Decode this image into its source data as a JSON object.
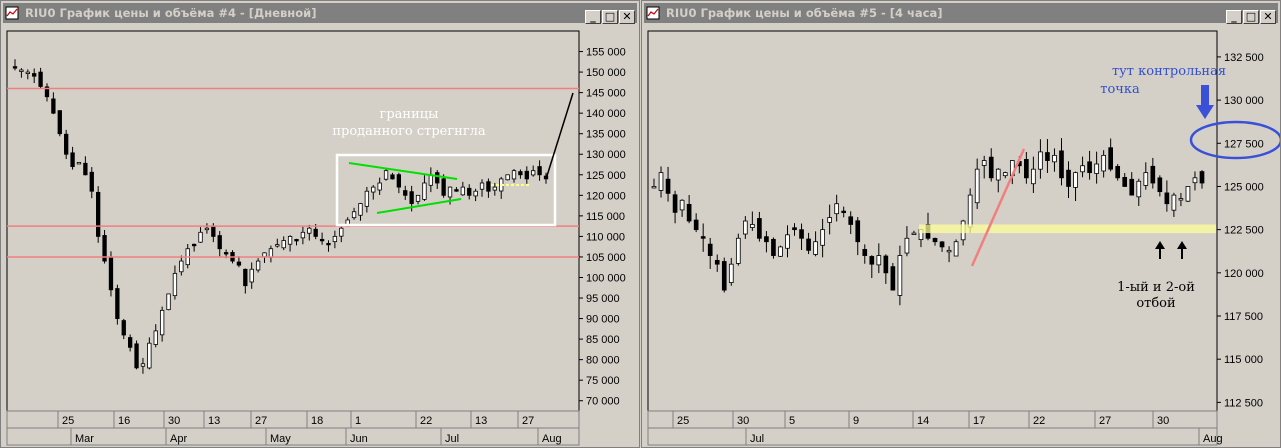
{
  "windows": [
    {
      "id": "w4",
      "title": "RIU0 График цены и объёма #4 - [Дневной]",
      "controls": [
        "_",
        "□",
        "✕"
      ],
      "chart_data": {
        "type": "candlestick",
        "instrument": "RIU0",
        "timeframe": "Дневной",
        "ylim": [
          67500,
          160000
        ],
        "yticks": [
          "155 000",
          "150 000",
          "145 000",
          "140 000",
          "135 000",
          "130 000",
          "125 000",
          "120 000",
          "115 000",
          "110 000",
          "105 000",
          "100 000",
          "95 000",
          "90 000",
          "85 000",
          "80 000",
          "75 000",
          "70 000"
        ],
        "ytick_values": [
          155000,
          150000,
          145000,
          140000,
          135000,
          130000,
          125000,
          120000,
          115000,
          110000,
          105000,
          100000,
          95000,
          90000,
          85000,
          80000,
          75000,
          70000
        ],
        "xticks_top": [
          "25",
          "16",
          "30",
          "13",
          "27",
          "18",
          "1",
          "22",
          "13",
          "27"
        ],
        "xticks_bottom": [
          "Mar",
          "Apr",
          "May",
          "Jun",
          "Jul",
          "Aug"
        ],
        "hlines": [
          146000,
          112500,
          105000
        ],
        "hline_color": "#f08080",
        "annotation": [
          "границы",
          "проданного стрегнгла"
        ],
        "close_series": [
          151000,
          150500,
          150000,
          149000,
          146500,
          144000,
          140000,
          135000,
          130000,
          127000,
          128000,
          125000,
          121000,
          110000,
          104000,
          97000,
          90000,
          86000,
          83000,
          78000,
          79000,
          84000,
          87000,
          92000,
          96000,
          101000,
          104000,
          107000,
          108000,
          111000,
          112000,
          110000,
          107000,
          106000,
          104000,
          103000,
          98000,
          102000,
          104000,
          106000,
          107000,
          108000,
          109000,
          110000,
          109000,
          111000,
          112000,
          110000,
          109000,
          108000,
          110000,
          112000,
          114000,
          116000,
          118000,
          121000,
          122000,
          123000,
          126000,
          124000,
          122000,
          120000,
          118000,
          120000,
          123000,
          125000,
          123000,
          120000,
          122000,
          121000,
          122000,
          120000,
          121000,
          123000,
          121000,
          122000,
          124000,
          125000,
          126000,
          125000,
          124000,
          126000,
          125000,
          124000
        ]
      }
    },
    {
      "id": "w5",
      "title": "RIU0 График цены и объёма #5 - [4 часа]",
      "controls": [
        "_",
        "□",
        "✕"
      ],
      "chart_data": {
        "type": "candlestick",
        "instrument": "RIU0",
        "timeframe": "4 часа",
        "ylim": [
          112000,
          134000
        ],
        "yticks": [
          "132 500",
          "130 000",
          "127 500",
          "125 000",
          "122 500",
          "120 000",
          "117 500",
          "115 000",
          "112 500"
        ],
        "ytick_values": [
          132500,
          130000,
          127500,
          125000,
          122500,
          120000,
          117500,
          115000,
          112500
        ],
        "xticks_top": [
          "25",
          "30",
          "5",
          "9",
          "14",
          "17",
          "22",
          "27",
          "30"
        ],
        "xticks_bottom": [
          "Jul",
          "Aug"
        ],
        "support_band": [
          122300,
          122800
        ],
        "annotation_top": [
          "тут контрольная",
          "точка"
        ],
        "annotation_bottom": [
          "1-ый и 2-ой",
          "отбой"
        ],
        "close_series": [
          125000,
          125800,
          124600,
          123500,
          124200,
          123000,
          122500,
          122000,
          121000,
          120500,
          119000,
          120500,
          122000,
          123000,
          122800,
          122000,
          121800,
          121000,
          121500,
          122200,
          122500,
          122000,
          121300,
          121800,
          122500,
          123200,
          124000,
          123500,
          122800,
          121800,
          121000,
          120500,
          121000,
          120000,
          119000,
          121000,
          122000,
          122300,
          122500,
          122000,
          121800,
          121500,
          121300,
          121800,
          123000,
          124500,
          126000,
          126500,
          125500,
          126000,
          125800,
          126500,
          126200,
          125500,
          126000,
          127000,
          126500,
          126800,
          125500,
          125000,
          125800,
          126200,
          125800,
          126300,
          126800,
          126000,
          125500,
          125000,
          124500,
          125300,
          125800,
          125200,
          124700,
          124000,
          124500,
          124300,
          125000,
          125500,
          125200
        ]
      }
    }
  ]
}
